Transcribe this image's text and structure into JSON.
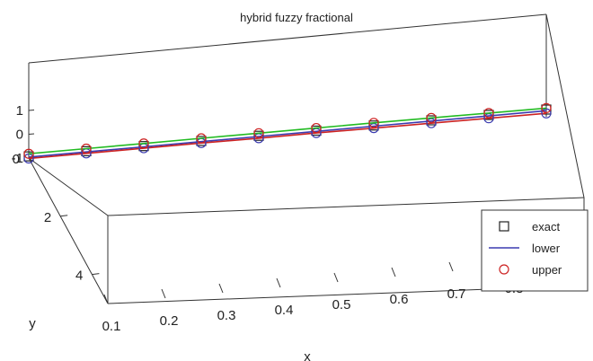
{
  "chart_data": {
    "type": "line",
    "view": "3d",
    "title": "hybrid fuzzy fractional",
    "xlabel": "x",
    "ylabel": "y",
    "zlabel": "",
    "x": [
      0.1,
      0.2,
      0.3,
      0.4,
      0.5,
      0.6,
      0.7,
      0.8,
      0.9,
      1.0
    ],
    "x_ticks": [
      "0.1",
      "0.2",
      "0.3",
      "0.4",
      "0.5",
      "0.6",
      "0.7",
      "0.8",
      "0.9"
    ],
    "y_ticks": [
      "0",
      "2",
      "4"
    ],
    "z_ticks": [
      "1",
      "0",
      "-1"
    ],
    "xlim": [
      0.1,
      1.0
    ],
    "ylim": [
      0,
      5
    ],
    "zlim": [
      -1,
      1
    ],
    "series": [
      {
        "name": "exact",
        "style": "markers",
        "marker": "square",
        "color": "#222222",
        "y": [
          0,
          0,
          0,
          0,
          0,
          0,
          0,
          0,
          0,
          0
        ],
        "z": [
          -0.93,
          -0.94,
          -0.95,
          -0.96,
          -0.97,
          -0.98,
          -0.99,
          -1.0,
          -1.0,
          -1.0
        ]
      },
      {
        "name": "lower",
        "style": "line",
        "color": "#3b3bb0",
        "y": [
          0,
          0,
          0,
          0,
          0,
          0,
          0,
          0,
          0,
          0
        ],
        "z": [
          -0.96,
          -0.97,
          -0.98,
          -0.99,
          -1.0,
          -1.01,
          -1.02,
          -1.03,
          -1.04,
          -1.05
        ]
      },
      {
        "name": "",
        "style": "line+markers",
        "marker": "circle",
        "color": "#cc2222",
        "marker_color": "#3b3bb0",
        "y": [
          0,
          0,
          0,
          0,
          0,
          0,
          0,
          0,
          0,
          0
        ],
        "z": [
          -1.02,
          -1.03,
          -1.04,
          -1.05,
          -1.07,
          -1.08,
          -1.1,
          -1.12,
          -1.14,
          -1.16
        ]
      },
      {
        "name": "upper",
        "style": "line+markers",
        "marker": "circle",
        "color": "#22bb22",
        "marker_color": "#cc2222",
        "y": [
          0,
          0,
          0,
          0,
          0,
          0,
          0,
          0,
          0,
          0
        ],
        "z": [
          -0.82,
          -0.83,
          -0.84,
          -0.85,
          -0.86,
          -0.87,
          -0.88,
          -0.9,
          -0.92,
          -0.94
        ]
      }
    ],
    "legend": {
      "placement": "bottom-right",
      "entries": [
        {
          "label": "exact",
          "type": "square-marker",
          "color": "#222222"
        },
        {
          "label": "lower",
          "type": "line",
          "color": "#3b3bb0"
        },
        {
          "label": "upper",
          "type": "circle-marker",
          "color": "#cc2222"
        }
      ]
    },
    "grid": false
  }
}
